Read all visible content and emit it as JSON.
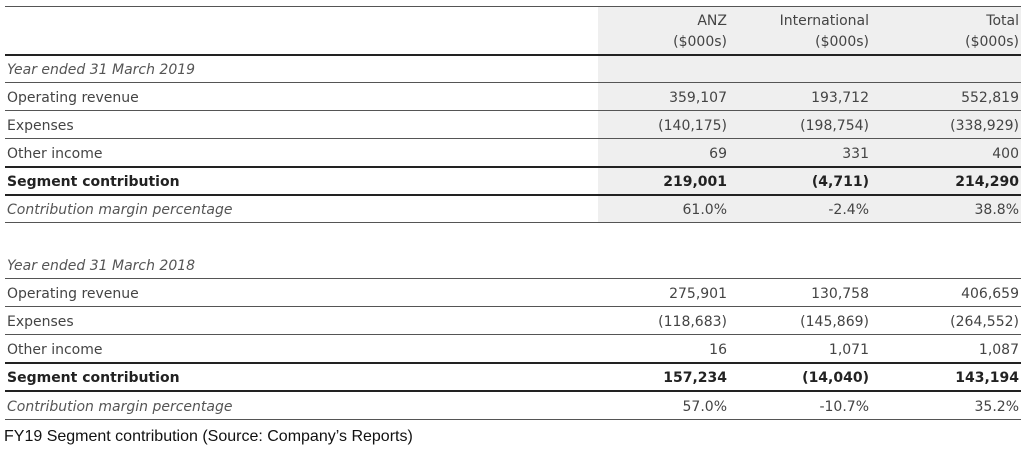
{
  "table": {
    "headers": [
      {
        "name": "ANZ",
        "unit": "($000s)"
      },
      {
        "name": "International",
        "unit": "($000s)"
      },
      {
        "name": "Total",
        "unit": "($000s)"
      }
    ],
    "fy2019": {
      "section_label": "Year ended 31 March 2019",
      "rows": [
        {
          "label": "Operating revenue",
          "values": [
            "359,107",
            "193,712",
            "552,819"
          ]
        },
        {
          "label": "Expenses",
          "values": [
            "(140,175)",
            "(198,754)",
            "(338,929)"
          ]
        },
        {
          "label": "Other income",
          "values": [
            "69",
            "331",
            "400"
          ]
        },
        {
          "label": "Segment contribution",
          "values": [
            "219,001",
            "(4,711)",
            "214,290"
          ]
        },
        {
          "label": "Contribution margin percentage",
          "values": [
            "61.0%",
            "-2.4%",
            "38.8%"
          ]
        }
      ]
    },
    "fy2018": {
      "section_label": "Year ended 31 March 2018",
      "rows": [
        {
          "label": "Operating revenue",
          "values": [
            "275,901",
            "130,758",
            "406,659"
          ]
        },
        {
          "label": "Expenses",
          "values": [
            "(118,683)",
            "(145,869)",
            "(264,552)"
          ]
        },
        {
          "label": "Other income",
          "values": [
            "16",
            "1,071",
            "1,087"
          ]
        },
        {
          "label": "Segment contribution",
          "values": [
            "157,234",
            "(14,040)",
            "143,194"
          ]
        },
        {
          "label": "Contribution margin percentage",
          "values": [
            "57.0%",
            "-10.7%",
            "35.2%"
          ]
        }
      ]
    }
  },
  "caption": "FY19 Segment contribution (Source: Company’s Reports)",
  "colors": {
    "shade": "#efefef",
    "text": "#444444",
    "rule": "#222222"
  }
}
